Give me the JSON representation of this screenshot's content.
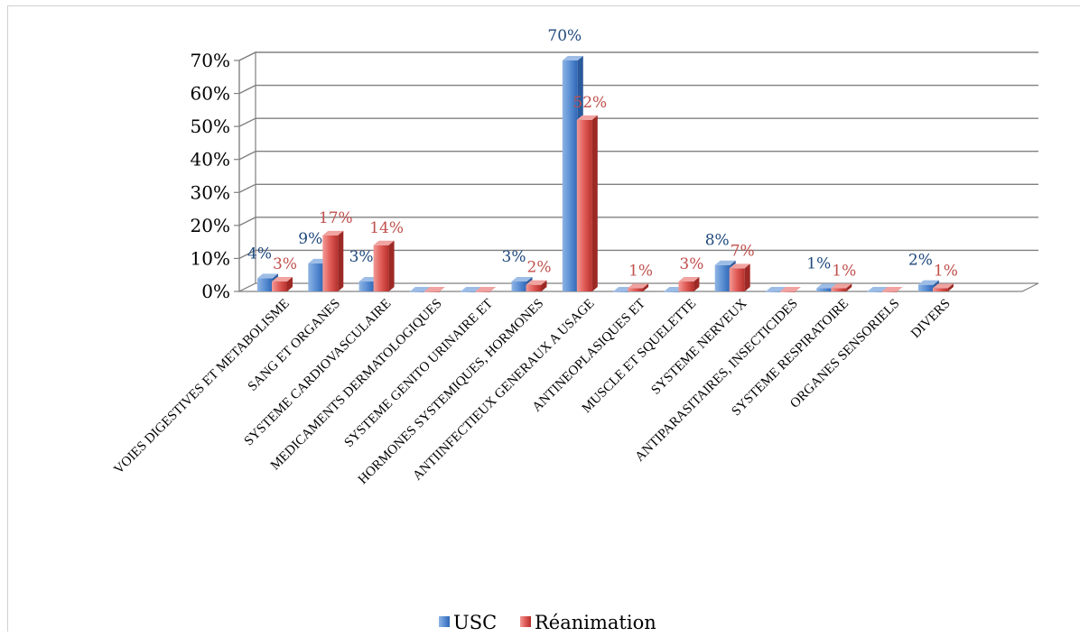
{
  "chart_data": {
    "type": "bar",
    "style": "3d-clustered-column",
    "categories": [
      "VOIES DIGESTIVES ET METABOLISME",
      "SANG ET ORGANES",
      "SYSTEME CARDIOVASCULAIRE",
      "MEDICAMENTS DERMATOLOGIQUES",
      "SYSTEME GENITO URINAIRE ET",
      "HORMONES SYSTEMIQUES, HORMONES",
      "ANTIINFECTIEUX GENERAUX A USAGE",
      "ANTINEOPLASIQUES ET",
      "MUSCLE ET SQUELETTE",
      "SYSTEME NERVEUX",
      "ANTIPARASITAIRES, INSECTICIDES",
      "SYSTEME RESPIRATOIRE",
      "ORGANES SENSORIELS",
      "DIVERS"
    ],
    "series": [
      {
        "name": "USC",
        "color": "#4f81bd",
        "values": [
          0.04,
          0.085,
          0.03,
          0,
          0,
          0.03,
          0.7,
          0,
          0,
          0.08,
          0,
          0.01,
          0,
          0.02
        ],
        "labels": [
          "4%",
          "9%",
          "3%",
          "",
          "",
          "3%",
          "70%",
          "",
          "",
          "8%",
          "",
          "1%",
          "",
          "2%"
        ]
      },
      {
        "name": "Réanimation",
        "color": "#c0504d",
        "values": [
          0.03,
          0.17,
          0.14,
          0,
          0,
          0.02,
          0.52,
          0.01,
          0.03,
          0.07,
          0,
          0.01,
          0,
          0.01
        ],
        "labels": [
          "3%",
          "17%",
          "14%",
          "",
          "",
          "2%",
          "52%",
          "1%",
          "3%",
          "7%",
          "",
          "1%",
          "",
          "1%"
        ]
      }
    ],
    "yticks": [
      "0%",
      "10%",
      "20%",
      "30%",
      "40%",
      "50%",
      "60%",
      "70%"
    ],
    "ylim": [
      0,
      0.7
    ],
    "grid": true,
    "legend_position": "bottom",
    "label_colors": {
      "USC": "#1f497d",
      "Réanimation": "#c0504d"
    }
  }
}
